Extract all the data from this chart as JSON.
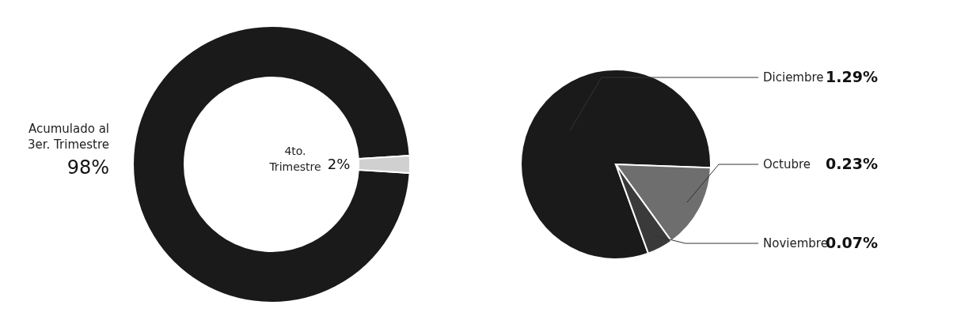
{
  "chart_data": [
    {
      "type": "donut",
      "categories": [
        "Acumulado al 3er. Trimestre",
        "4to. Trimestre"
      ],
      "values": [
        98,
        2
      ],
      "value_labels": [
        "98%",
        "2%"
      ],
      "colors": [
        "#1a1a1a",
        "#d0d0d0"
      ],
      "legend": false
    },
    {
      "type": "pie",
      "categories": [
        "Diciembre",
        "Octubre",
        "Noviembre"
      ],
      "values": [
        1.29,
        0.23,
        0.07
      ],
      "value_labels": [
        "1.29%",
        "0.23%",
        "0.07%"
      ],
      "colors": [
        "#1a1a1a",
        "#6e6e6e",
        "#3a3a3a"
      ],
      "legend": false
    }
  ]
}
